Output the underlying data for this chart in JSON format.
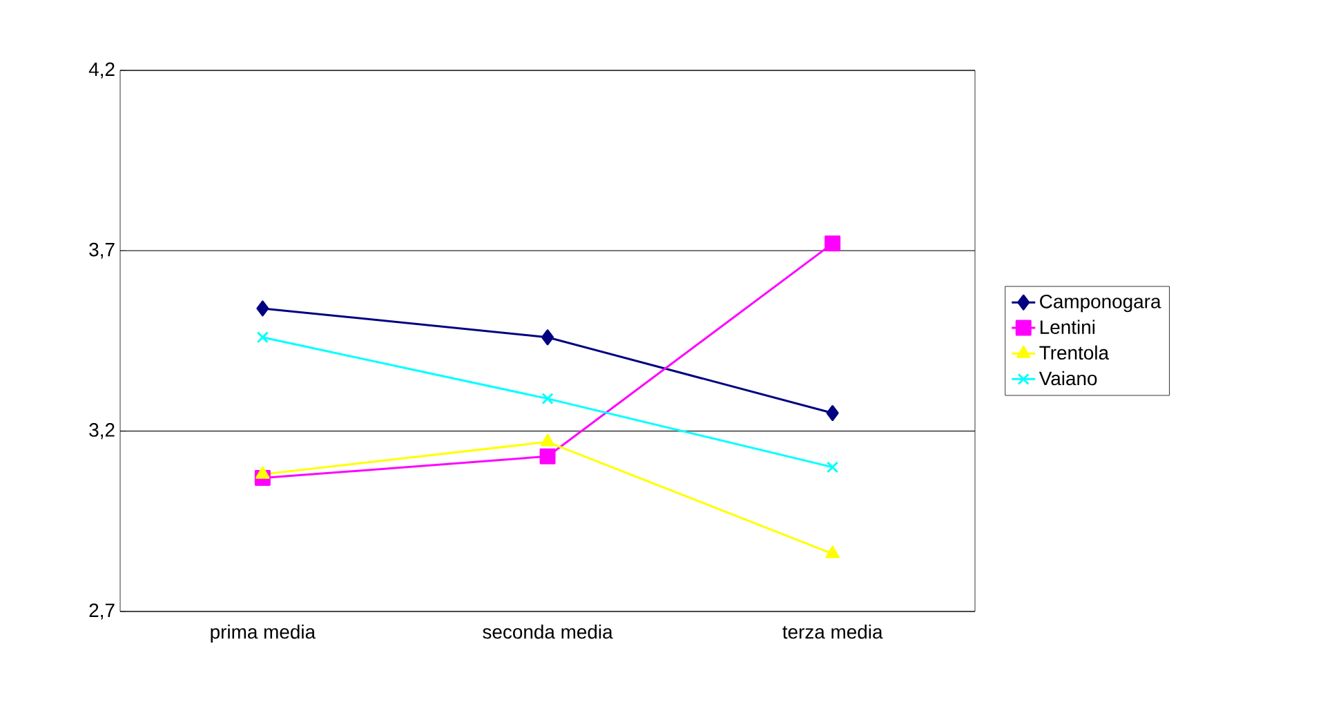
{
  "chart_data": {
    "type": "line",
    "categories": [
      "prima media",
      "seconda media",
      "terza media"
    ],
    "series": [
      {
        "name": "Camponogara",
        "color": "#000080",
        "marker": "diamond",
        "values": [
          3.54,
          3.46,
          3.25
        ]
      },
      {
        "name": "Lentini",
        "color": "#ff00ff",
        "marker": "square",
        "values": [
          3.07,
          3.13,
          3.72
        ]
      },
      {
        "name": "Trentola",
        "color": "#ffff00",
        "marker": "triangle",
        "values": [
          3.08,
          3.17,
          2.86
        ]
      },
      {
        "name": "Vaiano",
        "color": "#00ffff",
        "marker": "cross",
        "values": [
          3.46,
          3.29,
          3.1
        ]
      }
    ],
    "ylim": [
      2.7,
      4.2
    ],
    "yticks": [
      {
        "value": 2.7,
        "label": "2,7"
      },
      {
        "value": 3.2,
        "label": "3,2"
      },
      {
        "value": 3.7,
        "label": "3,7"
      },
      {
        "value": 4.2,
        "label": "4,2"
      }
    ],
    "grid": "y",
    "legend": "right"
  }
}
